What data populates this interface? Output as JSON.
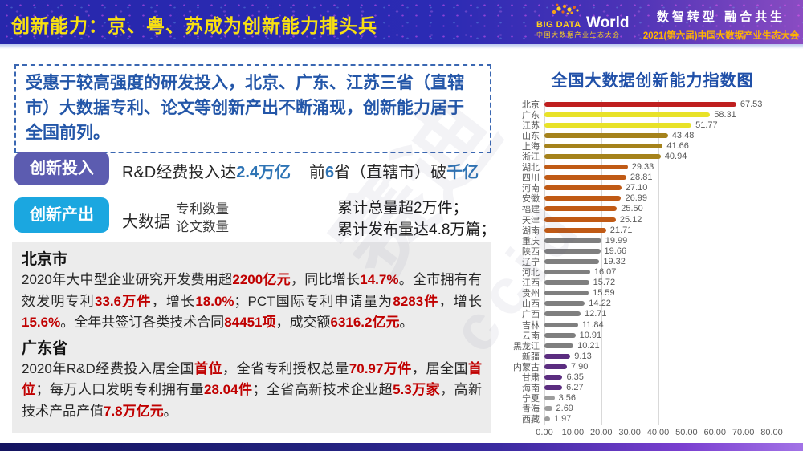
{
  "header": {
    "title": "创新能力：京、粤、苏成为创新能力排头兵",
    "logo": {
      "big_data": "BIG DATA",
      "world": "World",
      "subtitle": "中国大数据产业生态大会"
    },
    "slogan_line1": "数智转型 融合共生",
    "slogan_line2": "2021(第六届)中国大数据产业生态大会"
  },
  "watermark": {
    "text1": "赛迪",
    "text2": "ccid"
  },
  "summary": {
    "text": "受惠于较高强度的研发投入，北京、广东、江苏三省（直辖市）大数据专利、论文等创新产出不断涌现，创新能力居于全国前列。"
  },
  "innovation_input": {
    "badge": "创新投入",
    "part1": [
      {
        "t": "R&D经费投入达",
        "c": ""
      },
      {
        "t": "2.4万亿",
        "c": "hl-blue"
      }
    ],
    "part2": [
      {
        "t": "前",
        "c": ""
      },
      {
        "t": "6",
        "c": "hl-blue"
      },
      {
        "t": "省（直辖市）破",
        "c": ""
      },
      {
        "t": "千亿",
        "c": "hl-blue"
      }
    ]
  },
  "innovation_output": {
    "badge": "创新产出",
    "group_label": "大数据",
    "metrics": [
      "专利数量",
      "论文数量"
    ],
    "results": [
      "累计总量超2万件；",
      "累计发布量达4.8万篇；"
    ]
  },
  "beijing": {
    "heading": "北京市",
    "segments": [
      {
        "t": "2020年大中型企业研究开发费用超",
        "c": ""
      },
      {
        "t": "2200亿元",
        "c": "hl-red"
      },
      {
        "t": "，同比增长",
        "c": ""
      },
      {
        "t": "14.7%",
        "c": "hl-red"
      },
      {
        "t": "。全市拥有有效发明专利",
        "c": ""
      },
      {
        "t": "33.6万件",
        "c": "hl-red"
      },
      {
        "t": "，增长",
        "c": ""
      },
      {
        "t": "18.0%",
        "c": "hl-red"
      },
      {
        "t": "；PCT国际专利申请量为",
        "c": ""
      },
      {
        "t": "8283件",
        "c": "hl-red"
      },
      {
        "t": "，增长",
        "c": ""
      },
      {
        "t": "15.6%",
        "c": "hl-red"
      },
      {
        "t": "。全年共签订各类技术合同",
        "c": ""
      },
      {
        "t": "84451项",
        "c": "hl-red"
      },
      {
        "t": "，成交额",
        "c": ""
      },
      {
        "t": "6316.2亿元",
        "c": "hl-red"
      },
      {
        "t": "。",
        "c": ""
      }
    ]
  },
  "guangdong": {
    "heading": "广东省",
    "segments": [
      {
        "t": "2020年R&D经费投入居全国",
        "c": ""
      },
      {
        "t": "首位",
        "c": "hl-red"
      },
      {
        "t": "，全省专利授权总量",
        "c": ""
      },
      {
        "t": "70.97万件",
        "c": "hl-red"
      },
      {
        "t": "，居全国",
        "c": ""
      },
      {
        "t": "首位",
        "c": "hl-red"
      },
      {
        "t": "；每万人口发明专利拥有量",
        "c": ""
      },
      {
        "t": "28.04件",
        "c": "hl-red"
      },
      {
        "t": "；全省高新技术企业超",
        "c": ""
      },
      {
        "t": "5.3万家",
        "c": "hl-red"
      },
      {
        "t": "，高新技术产品产值",
        "c": ""
      },
      {
        "t": "7.8万亿元",
        "c": "hl-red"
      },
      {
        "t": "。",
        "c": ""
      }
    ]
  },
  "colors": {
    "highlight_red": "#c00000",
    "highlight_blue": "#2e74b5",
    "badge_input_bg": "#5c5cb0",
    "badge_output_bg": "#1ba7e0"
  },
  "chart_data": {
    "type": "bar",
    "orientation": "horizontal",
    "title": "全国大数据创新能力指数图",
    "categories": [
      "北京",
      "广东",
      "江苏",
      "山东",
      "上海",
      "浙江",
      "湖北",
      "四川",
      "河南",
      "安徽",
      "福建",
      "天津",
      "湖南",
      "重庆",
      "陕西",
      "辽宁",
      "河北",
      "江西",
      "贵州",
      "山西",
      "广西",
      "吉林",
      "云南",
      "黑龙江",
      "新疆",
      "内蒙古",
      "甘肃",
      "海南",
      "宁夏",
      "青海",
      "西藏"
    ],
    "values": [
      67.53,
      58.31,
      51.77,
      43.48,
      41.66,
      40.94,
      29.33,
      28.81,
      27.1,
      26.99,
      25.5,
      25.12,
      21.71,
      19.99,
      19.66,
      19.32,
      16.07,
      15.72,
      15.59,
      14.22,
      12.71,
      11.84,
      10.91,
      10.21,
      9.13,
      7.9,
      6.35,
      6.27,
      3.56,
      2.69,
      1.97
    ],
    "colors": [
      "#bf1f1f",
      "#e8e228",
      "#e8e228",
      "#a5821b",
      "#a5821b",
      "#a5821b",
      "#c05a15",
      "#c05a15",
      "#c05a15",
      "#c05a15",
      "#c05a15",
      "#c05a15",
      "#c05a15",
      "#7f7f7f",
      "#7f7f7f",
      "#7f7f7f",
      "#7f7f7f",
      "#7f7f7f",
      "#7f7f7f",
      "#7f7f7f",
      "#7f7f7f",
      "#7f7f7f",
      "#7f7f7f",
      "#7f7f7f",
      "#5b2d80",
      "#5b2d80",
      "#5b2d80",
      "#5b2d80",
      "#9c9c9c",
      "#9c9c9c",
      "#9c9c9c"
    ],
    "xlim": [
      0,
      80
    ],
    "x_ticks": [
      0,
      10,
      20,
      30,
      40,
      50,
      60,
      70,
      80
    ],
    "x_tick_labels": [
      "0.00",
      "10.00",
      "20.00",
      "30.00",
      "40.00",
      "50.00",
      "60.00",
      "70.00",
      "80.00"
    ],
    "grid": "vertical",
    "legend": "none"
  }
}
